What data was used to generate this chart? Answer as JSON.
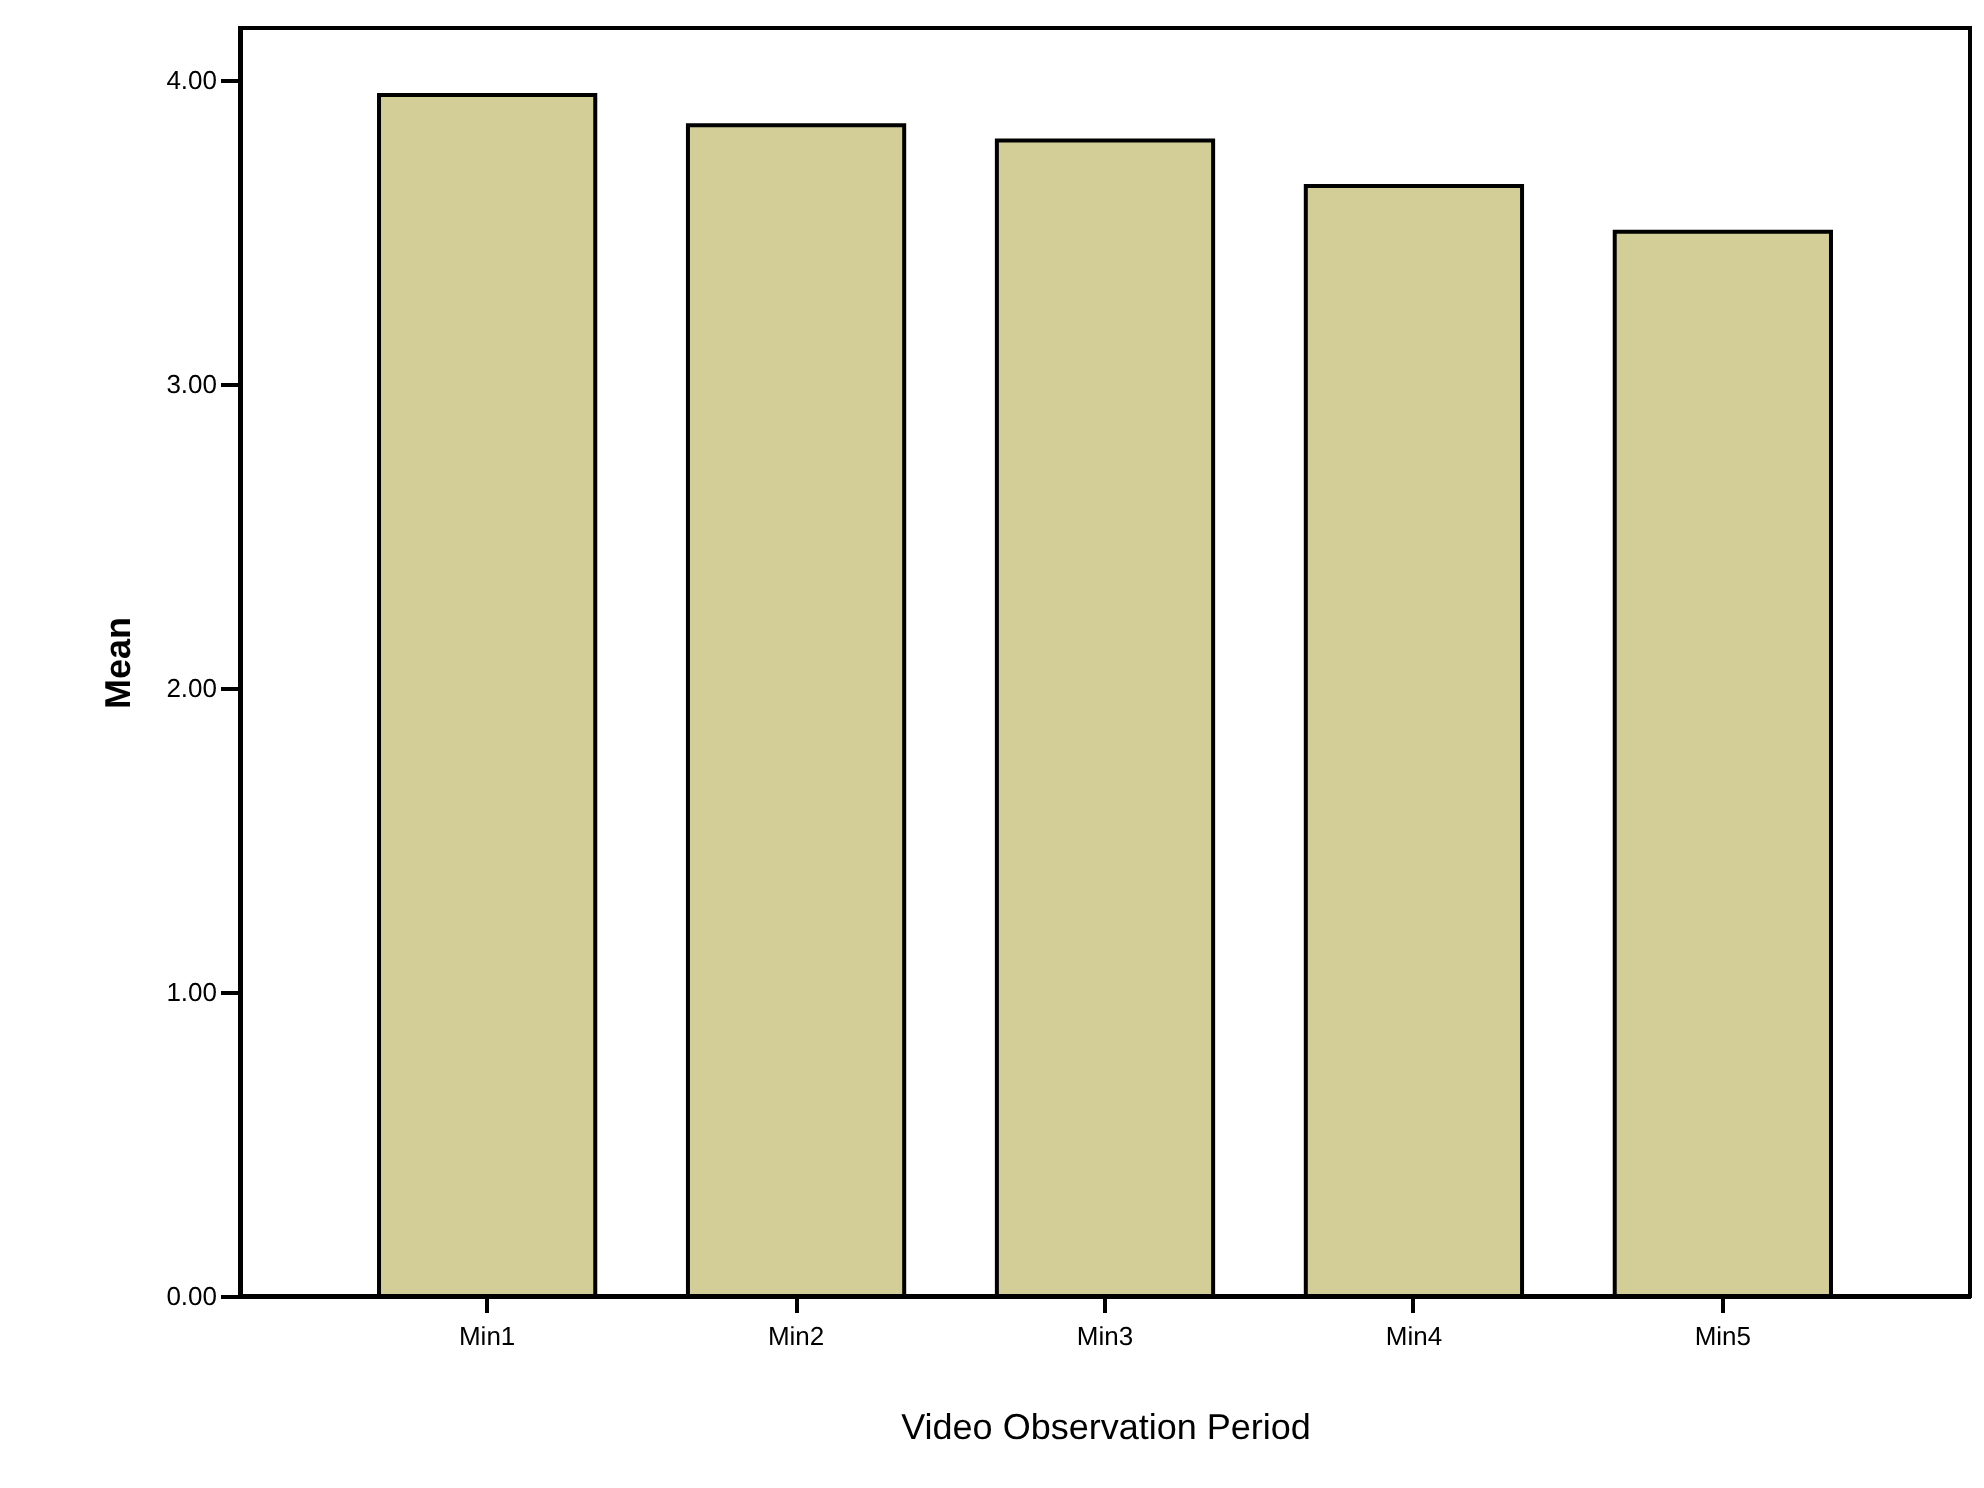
{
  "chart_data": {
    "type": "bar",
    "xlabel": "Video Observation Period",
    "ylabel": "Mean",
    "categories": [
      "Min1",
      "Min2",
      "Min3",
      "Min4",
      "Min5"
    ],
    "values": [
      3.95,
      3.85,
      3.8,
      3.65,
      3.5
    ],
    "color": "#d3ce98",
    "ylim": [
      0,
      4.17
    ],
    "yticks": [
      {
        "value": 0,
        "label": "0.00"
      },
      {
        "value": 1,
        "label": "1.00"
      },
      {
        "value": 2,
        "label": "2.00"
      },
      {
        "value": 3,
        "label": "3.00"
      },
      {
        "value": 4,
        "label": "4.00"
      }
    ],
    "grid": false
  }
}
